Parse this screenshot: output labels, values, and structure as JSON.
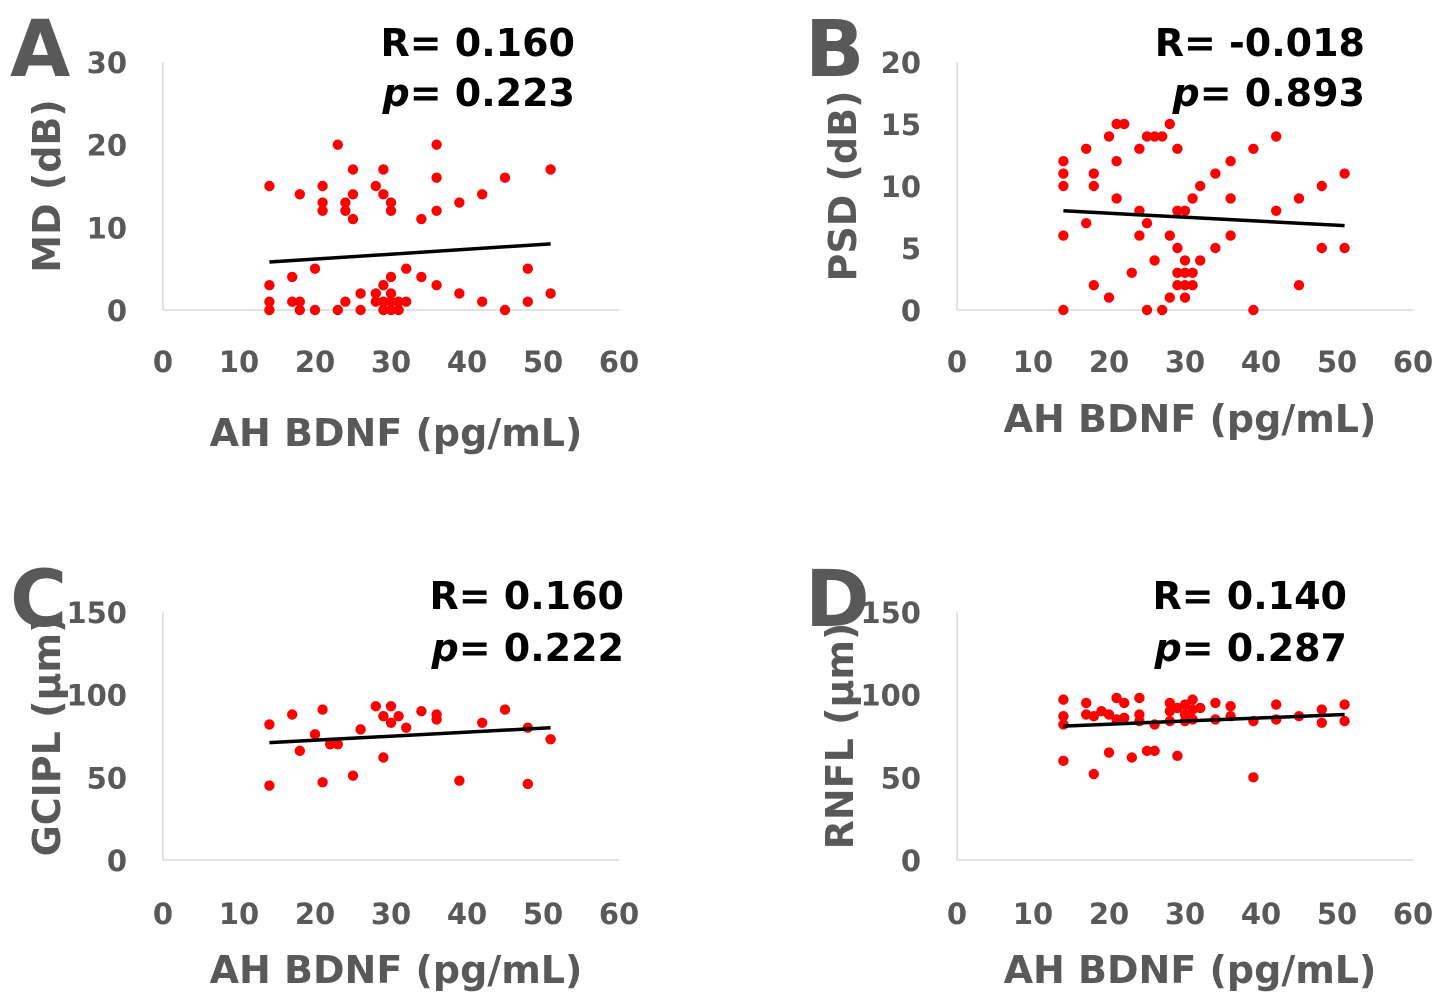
{
  "figure": {
    "colors": {
      "points": "#ff0000",
      "fit_line": "#000000",
      "text": "#595959",
      "axis": "#d9d9d9",
      "stat_text": "#000000"
    }
  },
  "chart_data": [
    {
      "type": "scatter",
      "panel": "A",
      "xlabel": "AH BDNF (pg/mL)",
      "ylabel": "MD (dB)",
      "xlim": [
        0,
        60
      ],
      "ylim": [
        0,
        30
      ],
      "xticks": [
        0,
        10,
        20,
        30,
        40,
        50,
        60
      ],
      "yticks": [
        0,
        10,
        20,
        30
      ],
      "grid": false,
      "stats": {
        "r_prefix": "R=",
        "r": "0.160",
        "p_prefix": "p",
        "p_eq": "=",
        "p": "0.223"
      },
      "fit": {
        "x": [
          14,
          51
        ],
        "y": [
          5.8,
          8.0
        ]
      },
      "points": [
        [
          14,
          15
        ],
        [
          14,
          3
        ],
        [
          14,
          1
        ],
        [
          14,
          0
        ],
        [
          17,
          4
        ],
        [
          17,
          1
        ],
        [
          18,
          14
        ],
        [
          18,
          1
        ],
        [
          18,
          0
        ],
        [
          20,
          5
        ],
        [
          20,
          0
        ],
        [
          21,
          15
        ],
        [
          21,
          13
        ],
        [
          21,
          12
        ],
        [
          23,
          20
        ],
        [
          23,
          0
        ],
        [
          24,
          13
        ],
        [
          24,
          12
        ],
        [
          24,
          1
        ],
        [
          25,
          14
        ],
        [
          25,
          11
        ],
        [
          25,
          17
        ],
        [
          26,
          2
        ],
        [
          26,
          0
        ],
        [
          28,
          15
        ],
        [
          28,
          2
        ],
        [
          28,
          1
        ],
        [
          29,
          17
        ],
        [
          29,
          14
        ],
        [
          29,
          3
        ],
        [
          29,
          1
        ],
        [
          29,
          0
        ],
        [
          30,
          13
        ],
        [
          30,
          12
        ],
        [
          30,
          4
        ],
        [
          30,
          2
        ],
        [
          30,
          1
        ],
        [
          30,
          0
        ],
        [
          31,
          1
        ],
        [
          31,
          0
        ],
        [
          32,
          5
        ],
        [
          32,
          1
        ],
        [
          34,
          11
        ],
        [
          34,
          4
        ],
        [
          36,
          20
        ],
        [
          36,
          16
        ],
        [
          36,
          12
        ],
        [
          36,
          3
        ],
        [
          39,
          13
        ],
        [
          39,
          2
        ],
        [
          42,
          14
        ],
        [
          42,
          1
        ],
        [
          45,
          16
        ],
        [
          45,
          0
        ],
        [
          48,
          5
        ],
        [
          48,
          1
        ],
        [
          51,
          17
        ],
        [
          51,
          2
        ]
      ]
    },
    {
      "type": "scatter",
      "panel": "B",
      "xlabel": "AH BDNF (pg/mL)",
      "ylabel": "PSD (dB)",
      "xlim": [
        0,
        60
      ],
      "ylim": [
        0,
        20
      ],
      "xticks": [
        0,
        10,
        20,
        30,
        40,
        50,
        60
      ],
      "yticks": [
        0,
        5,
        10,
        15,
        20
      ],
      "grid": false,
      "stats": {
        "r_prefix": "R=",
        "r": "-0.018",
        "p_prefix": "p",
        "p_eq": "=",
        "p": "0.893"
      },
      "fit": {
        "x": [
          14,
          51
        ],
        "y": [
          8.0,
          6.8
        ]
      },
      "points": [
        [
          14,
          12
        ],
        [
          14,
          11
        ],
        [
          14,
          10
        ],
        [
          14,
          6
        ],
        [
          14,
          0
        ],
        [
          17,
          13
        ],
        [
          17,
          7
        ],
        [
          18,
          11
        ],
        [
          18,
          10
        ],
        [
          18,
          2
        ],
        [
          20,
          14
        ],
        [
          20,
          1
        ],
        [
          21,
          15
        ],
        [
          21,
          12
        ],
        [
          21,
          9
        ],
        [
          22,
          15
        ],
        [
          23,
          3
        ],
        [
          24,
          13
        ],
        [
          24,
          8
        ],
        [
          24,
          6
        ],
        [
          25,
          14
        ],
        [
          25,
          7
        ],
        [
          25,
          0
        ],
        [
          26,
          14
        ],
        [
          26,
          4
        ],
        [
          27,
          14
        ],
        [
          27,
          0
        ],
        [
          28,
          15
        ],
        [
          28,
          6
        ],
        [
          28,
          1
        ],
        [
          29,
          13
        ],
        [
          29,
          8
        ],
        [
          29,
          5
        ],
        [
          29,
          3
        ],
        [
          29,
          2
        ],
        [
          30,
          8
        ],
        [
          30,
          4
        ],
        [
          30,
          3
        ],
        [
          30,
          2
        ],
        [
          30,
          1
        ],
        [
          31,
          9
        ],
        [
          31,
          3
        ],
        [
          31,
          2
        ],
        [
          32,
          10
        ],
        [
          32,
          4
        ],
        [
          34,
          11
        ],
        [
          34,
          5
        ],
        [
          36,
          12
        ],
        [
          36,
          9
        ],
        [
          36,
          6
        ],
        [
          39,
          13
        ],
        [
          39,
          0
        ],
        [
          42,
          14
        ],
        [
          42,
          8
        ],
        [
          45,
          9
        ],
        [
          45,
          2
        ],
        [
          48,
          10
        ],
        [
          48,
          5
        ],
        [
          51,
          11
        ],
        [
          51,
          5
        ]
      ]
    },
    {
      "type": "scatter",
      "panel": "C",
      "xlabel": "AH BDNF (pg/mL)",
      "ylabel": "GCIPL (μm)",
      "xlim": [
        0,
        60
      ],
      "ylim": [
        0,
        150
      ],
      "xticks": [
        0,
        10,
        20,
        30,
        40,
        50,
        60
      ],
      "yticks": [
        0,
        50,
        100,
        150
      ],
      "grid": false,
      "stats": {
        "r_prefix": "R=",
        "r": "0.160",
        "p_prefix": "p",
        "p_eq": "=",
        "p": "0.222"
      },
      "fit": {
        "x": [
          14,
          51
        ],
        "y": [
          71,
          80
        ]
      },
      "points": [
        [
          14,
          82
        ],
        [
          14,
          45
        ],
        [
          17,
          88
        ],
        [
          18,
          66
        ],
        [
          20,
          76
        ],
        [
          21,
          91
        ],
        [
          21,
          47
        ],
        [
          22,
          70
        ],
        [
          23,
          70
        ],
        [
          25,
          51
        ],
        [
          26,
          79
        ],
        [
          28,
          93
        ],
        [
          29,
          87
        ],
        [
          29,
          62
        ],
        [
          30,
          93
        ],
        [
          30,
          83
        ],
        [
          31,
          87
        ],
        [
          32,
          80
        ],
        [
          34,
          90
        ],
        [
          36,
          88
        ],
        [
          36,
          85
        ],
        [
          39,
          48
        ],
        [
          42,
          83
        ],
        [
          45,
          91
        ],
        [
          48,
          80
        ],
        [
          48,
          46
        ],
        [
          51,
          73
        ]
      ]
    },
    {
      "type": "scatter",
      "panel": "D",
      "xlabel": "AH BDNF (pg/mL)",
      "ylabel": "RNFL (μm)",
      "xlim": [
        0,
        60
      ],
      "ylim": [
        0,
        150
      ],
      "xticks": [
        0,
        10,
        20,
        30,
        40,
        50,
        60
      ],
      "yticks": [
        0,
        50,
        100,
        150
      ],
      "grid": false,
      "stats": {
        "r_prefix": "R=",
        "r": "0.140",
        "p_prefix": "p",
        "p_eq": "=",
        "p": "0.287"
      },
      "fit": {
        "x": [
          14,
          51
        ],
        "y": [
          81,
          88
        ]
      },
      "points": [
        [
          14,
          97
        ],
        [
          14,
          87
        ],
        [
          14,
          82
        ],
        [
          14,
          60
        ],
        [
          17,
          95
        ],
        [
          17,
          88
        ],
        [
          18,
          87
        ],
        [
          18,
          52
        ],
        [
          19,
          90
        ],
        [
          20,
          88
        ],
        [
          20,
          65
        ],
        [
          21,
          98
        ],
        [
          21,
          85
        ],
        [
          22,
          95
        ],
        [
          22,
          86
        ],
        [
          23,
          62
        ],
        [
          24,
          98
        ],
        [
          24,
          88
        ],
        [
          24,
          84
        ],
        [
          25,
          66
        ],
        [
          26,
          82
        ],
        [
          26,
          66
        ],
        [
          28,
          95
        ],
        [
          28,
          90
        ],
        [
          28,
          84
        ],
        [
          29,
          92
        ],
        [
          29,
          63
        ],
        [
          30,
          94
        ],
        [
          30,
          88
        ],
        [
          30,
          84
        ],
        [
          31,
          97
        ],
        [
          31,
          91
        ],
        [
          31,
          85
        ],
        [
          32,
          92
        ],
        [
          34,
          95
        ],
        [
          34,
          85
        ],
        [
          36,
          93
        ],
        [
          36,
          87
        ],
        [
          39,
          84
        ],
        [
          39,
          50
        ],
        [
          42,
          94
        ],
        [
          42,
          85
        ],
        [
          45,
          87
        ],
        [
          48,
          91
        ],
        [
          48,
          83
        ],
        [
          51,
          94
        ],
        [
          51,
          84
        ]
      ]
    }
  ]
}
